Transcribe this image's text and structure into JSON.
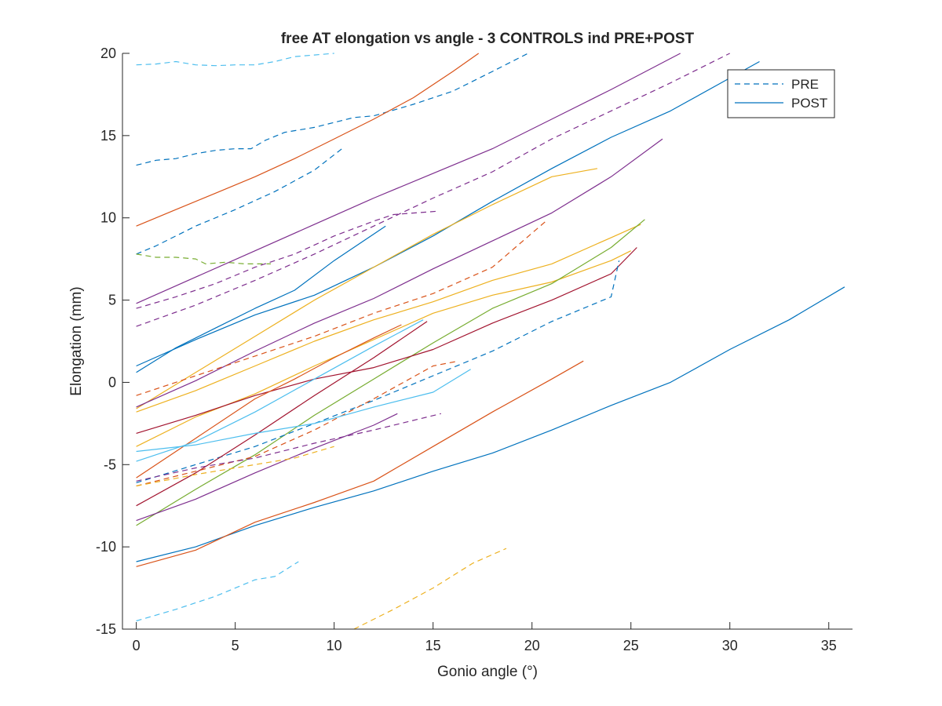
{
  "chart_data": {
    "type": "line",
    "title": "free AT elongation vs angle - 3 CONTROLS ind PRE+POST",
    "xlabel": "Gonio angle (°)",
    "ylabel": "Elongation (mm)",
    "xlim": [
      -0.7,
      36.2
    ],
    "ylim": [
      -15,
      20
    ],
    "xticks": [
      0,
      5,
      10,
      15,
      20,
      25,
      30,
      35
    ],
    "yticks": [
      -15,
      -10,
      -5,
      0,
      5,
      10,
      15,
      20
    ],
    "grid": false,
    "legend": {
      "position": "top-right",
      "entries": [
        {
          "label": "PRE",
          "style": "dashed",
          "color": "#0072bd"
        },
        {
          "label": "POST",
          "style": "solid",
          "color": "#0072bd"
        }
      ]
    },
    "series": [
      {
        "color": "#4dbeee",
        "style": "dashed",
        "points": [
          [
            0,
            19.3
          ],
          [
            1,
            19.35
          ],
          [
            2,
            19.5
          ],
          [
            3,
            19.3
          ],
          [
            4,
            19.25
          ],
          [
            5,
            19.3
          ],
          [
            6,
            19.3
          ],
          [
            7,
            19.5
          ],
          [
            8,
            19.8
          ],
          [
            9,
            19.9
          ],
          [
            10,
            20
          ]
        ]
      },
      {
        "color": "#0072bd",
        "style": "dashed",
        "points": [
          [
            0,
            13.2
          ],
          [
            1,
            13.5
          ],
          [
            2,
            13.6
          ],
          [
            3,
            13.9
          ],
          [
            4,
            14.1
          ],
          [
            5,
            14.2
          ],
          [
            5.8,
            14.2
          ],
          [
            6.5,
            14.7
          ],
          [
            7.5,
            15.2
          ],
          [
            9,
            15.5
          ],
          [
            10,
            15.8
          ],
          [
            11,
            16.1
          ],
          [
            12,
            16.2
          ],
          [
            14,
            16.9
          ],
          [
            16,
            17.7
          ],
          [
            18,
            18.9
          ],
          [
            19.8,
            20
          ]
        ]
      },
      {
        "color": "#d95319",
        "style": "solid",
        "points": [
          [
            0,
            9.5
          ],
          [
            2,
            10.5
          ],
          [
            4,
            11.5
          ],
          [
            6,
            12.5
          ],
          [
            8,
            13.6
          ],
          [
            10,
            14.8
          ],
          [
            12,
            16
          ],
          [
            14,
            17.3
          ],
          [
            16,
            18.9
          ],
          [
            17.3,
            20
          ]
        ]
      },
      {
        "color": "#0072bd",
        "style": "dashed",
        "points": [
          [
            0,
            7.8
          ],
          [
            1,
            8.3
          ],
          [
            2,
            8.9
          ],
          [
            3,
            9.5
          ],
          [
            5,
            10.5
          ],
          [
            7,
            11.6
          ],
          [
            9,
            12.9
          ],
          [
            10.5,
            14.3
          ]
        ]
      },
      {
        "color": "#77ac30",
        "style": "dashed",
        "points": [
          [
            0,
            7.8
          ],
          [
            1,
            7.6
          ],
          [
            2,
            7.6
          ],
          [
            3,
            7.5
          ],
          [
            3.5,
            7.2
          ],
          [
            4.5,
            7.3
          ],
          [
            5.5,
            7.2
          ],
          [
            6.8,
            7.2
          ]
        ]
      },
      {
        "color": "#7e2f8e",
        "style": "solid",
        "points": [
          [
            0,
            4.8
          ],
          [
            3,
            6.4
          ],
          [
            6,
            8
          ],
          [
            9,
            9.6
          ],
          [
            12,
            11.2
          ],
          [
            15,
            12.7
          ],
          [
            18,
            14.2
          ],
          [
            21,
            16
          ],
          [
            24,
            17.8
          ],
          [
            27.5,
            20
          ]
        ]
      },
      {
        "color": "#7e2f8e",
        "style": "dashed",
        "points": [
          [
            0,
            4.5
          ],
          [
            2,
            5.2
          ],
          [
            4,
            6
          ],
          [
            6,
            7
          ],
          [
            8,
            7.8
          ],
          [
            10,
            8.9
          ],
          [
            12,
            9.8
          ],
          [
            13,
            10.2
          ],
          [
            15.2,
            10.4
          ]
        ]
      },
      {
        "color": "#7e2f8e",
        "style": "dashed",
        "points": [
          [
            0,
            3.4
          ],
          [
            3,
            4.7
          ],
          [
            6,
            6.2
          ],
          [
            9,
            7.8
          ],
          [
            12,
            9.5
          ],
          [
            15,
            11.2
          ],
          [
            18,
            12.8
          ],
          [
            21,
            14.8
          ],
          [
            24,
            16.5
          ],
          [
            27,
            18.2
          ],
          [
            30,
            20
          ]
        ]
      },
      {
        "color": "#0072bd",
        "style": "solid",
        "points": [
          [
            0,
            1
          ],
          [
            3,
            2.6
          ],
          [
            6,
            4.1
          ],
          [
            9,
            5.3
          ],
          [
            12,
            7
          ],
          [
            15,
            8.9
          ],
          [
            18,
            11
          ],
          [
            21,
            13
          ],
          [
            24,
            14.9
          ],
          [
            27,
            16.5
          ],
          [
            30,
            18.5
          ],
          [
            31.5,
            19.5
          ]
        ]
      },
      {
        "color": "#0072bd",
        "style": "solid",
        "points": [
          [
            0,
            0.6
          ],
          [
            2,
            2.1
          ],
          [
            4,
            3.3
          ],
          [
            6,
            4.5
          ],
          [
            8,
            5.6
          ],
          [
            10,
            7.4
          ],
          [
            12.6,
            9.5
          ]
        ]
      },
      {
        "color": "#edb120",
        "style": "solid",
        "points": [
          [
            0,
            -1.6
          ],
          [
            3,
            0.6
          ],
          [
            6,
            2.8
          ],
          [
            9,
            5
          ],
          [
            12,
            7
          ],
          [
            15,
            9
          ],
          [
            18,
            10.8
          ],
          [
            21,
            12.5
          ],
          [
            23.3,
            13
          ]
        ]
      },
      {
        "color": "#7e2f8e",
        "style": "solid",
        "points": [
          [
            0,
            -1.5
          ],
          [
            3,
            0.1
          ],
          [
            6,
            1.9
          ],
          [
            9,
            3.6
          ],
          [
            12,
            5.1
          ],
          [
            15,
            6.9
          ],
          [
            18,
            8.6
          ],
          [
            21,
            10.3
          ],
          [
            24,
            12.5
          ],
          [
            26.6,
            14.8
          ]
        ]
      },
      {
        "color": "#edb120",
        "style": "solid",
        "points": [
          [
            0,
            -1.8
          ],
          [
            3,
            -0.5
          ],
          [
            6,
            1
          ],
          [
            9,
            2.5
          ],
          [
            12,
            3.8
          ],
          [
            15,
            4.9
          ],
          [
            18,
            6.2
          ],
          [
            21,
            7.2
          ],
          [
            24,
            8.8
          ],
          [
            25.5,
            9.6
          ]
        ]
      },
      {
        "color": "#d95319",
        "style": "dashed",
        "points": [
          [
            0,
            -0.8
          ],
          [
            3,
            0.4
          ],
          [
            6,
            1.6
          ],
          [
            9,
            2.8
          ],
          [
            12,
            4.2
          ],
          [
            15,
            5.4
          ],
          [
            18,
            7
          ],
          [
            20.8,
            9.9
          ]
        ]
      },
      {
        "color": "#edb120",
        "style": "solid",
        "points": [
          [
            0,
            -3.9
          ],
          [
            3,
            -2.1
          ],
          [
            6,
            -0.7
          ],
          [
            9,
            1
          ],
          [
            12,
            2.6
          ],
          [
            15,
            4.2
          ],
          [
            18,
            5.3
          ],
          [
            21,
            6.1
          ],
          [
            24,
            7.4
          ],
          [
            25,
            8
          ]
        ]
      },
      {
        "color": "#77ac30",
        "style": "solid",
        "points": [
          [
            0,
            -8.7
          ],
          [
            3,
            -6.5
          ],
          [
            6,
            -4.4
          ],
          [
            9,
            -2
          ],
          [
            12,
            0.2
          ],
          [
            15,
            2.4
          ],
          [
            18,
            4.5
          ],
          [
            21,
            6
          ],
          [
            24,
            8.2
          ],
          [
            25.7,
            9.9
          ]
        ]
      },
      {
        "color": "#a2142f",
        "style": "solid",
        "points": [
          [
            0,
            -3.1
          ],
          [
            3,
            -2
          ],
          [
            6,
            -0.8
          ],
          [
            9,
            0.2
          ],
          [
            12,
            0.9
          ],
          [
            15,
            2
          ],
          [
            18,
            3.6
          ],
          [
            21,
            5
          ],
          [
            24,
            6.6
          ],
          [
            25.3,
            8.2
          ]
        ]
      },
      {
        "color": "#0072bd",
        "style": "dashed",
        "points": [
          [
            0,
            -6.1
          ],
          [
            3,
            -5
          ],
          [
            6,
            -3.9
          ],
          [
            9,
            -2.5
          ],
          [
            12,
            -1.1
          ],
          [
            15,
            0.4
          ],
          [
            18,
            1.9
          ],
          [
            21,
            3.7
          ],
          [
            24,
            5.2
          ],
          [
            24.4,
            7.4
          ]
        ]
      },
      {
        "color": "#d95319",
        "style": "solid",
        "points": [
          [
            0,
            -5.8
          ],
          [
            3,
            -3.4
          ],
          [
            6,
            -1
          ],
          [
            8,
            0.2
          ],
          [
            10,
            1.5
          ],
          [
            12,
            2.7
          ],
          [
            13.4,
            3.5
          ]
        ]
      },
      {
        "color": "#a2142f",
        "style": "solid",
        "points": [
          [
            0,
            -7.5
          ],
          [
            3,
            -5.5
          ],
          [
            6,
            -3.2
          ],
          [
            9,
            -0.8
          ],
          [
            12,
            1.5
          ],
          [
            14.7,
            3.7
          ]
        ]
      },
      {
        "color": "#4dbeee",
        "style": "solid",
        "points": [
          [
            0,
            -4.8
          ],
          [
            3,
            -3.6
          ],
          [
            6,
            -1.8
          ],
          [
            9,
            0.2
          ],
          [
            12,
            2.2
          ],
          [
            14.5,
            3.8
          ]
        ]
      },
      {
        "color": "#d95319",
        "style": "dashed",
        "points": [
          [
            0,
            -6.3
          ],
          [
            3,
            -5.4
          ],
          [
            6,
            -4.5
          ],
          [
            9,
            -2.9
          ],
          [
            12,
            -1
          ],
          [
            15,
            1
          ],
          [
            16.3,
            1.3
          ]
        ]
      },
      {
        "color": "#4dbeee",
        "style": "solid",
        "points": [
          [
            0,
            -4.2
          ],
          [
            3,
            -3.8
          ],
          [
            6,
            -3.1
          ],
          [
            9,
            -2.5
          ],
          [
            12,
            -1.5
          ],
          [
            15,
            -0.6
          ],
          [
            16.9,
            0.8
          ]
        ]
      },
      {
        "color": "#7e2f8e",
        "style": "solid",
        "points": [
          [
            0,
            -8.4
          ],
          [
            3,
            -7.1
          ],
          [
            6,
            -5.5
          ],
          [
            9,
            -4
          ],
          [
            12,
            -2.6
          ],
          [
            13.2,
            -1.9
          ]
        ]
      },
      {
        "color": "#7e2f8e",
        "style": "dashed",
        "points": [
          [
            0,
            -6
          ],
          [
            3,
            -5.2
          ],
          [
            6,
            -4.6
          ],
          [
            9,
            -3.7
          ],
          [
            12,
            -2.9
          ],
          [
            15.4,
            -1.9
          ]
        ]
      },
      {
        "color": "#edb120",
        "style": "dashed",
        "points": [
          [
            0,
            -6.3
          ],
          [
            3,
            -5.6
          ],
          [
            6,
            -5
          ],
          [
            8,
            -4.6
          ],
          [
            10,
            -3.9
          ]
        ]
      },
      {
        "color": "#0072bd",
        "style": "solid",
        "points": [
          [
            0,
            -10.9
          ],
          [
            3,
            -10
          ],
          [
            6,
            -8.7
          ],
          [
            9,
            -7.6
          ],
          [
            12,
            -6.6
          ],
          [
            15,
            -5.4
          ],
          [
            18,
            -4.3
          ],
          [
            21,
            -2.9
          ],
          [
            24,
            -1.4
          ],
          [
            27,
            0
          ],
          [
            30,
            2
          ],
          [
            33,
            3.8
          ],
          [
            35.8,
            5.8
          ]
        ]
      },
      {
        "color": "#d95319",
        "style": "solid",
        "points": [
          [
            0,
            -11.2
          ],
          [
            3,
            -10.2
          ],
          [
            6,
            -8.5
          ],
          [
            9,
            -7.3
          ],
          [
            12,
            -6
          ],
          [
            15,
            -3.9
          ],
          [
            18,
            -1.8
          ],
          [
            21,
            0.2
          ],
          [
            22.6,
            1.3
          ]
        ]
      },
      {
        "color": "#4dbeee",
        "style": "dashed",
        "points": [
          [
            0,
            -14.5
          ],
          [
            2,
            -13.8
          ],
          [
            4,
            -13
          ],
          [
            6,
            -12
          ],
          [
            7,
            -11.8
          ],
          [
            8.2,
            -10.9
          ]
        ]
      },
      {
        "color": "#edb120",
        "style": "dashed",
        "points": [
          [
            11,
            -15
          ],
          [
            13,
            -13.8
          ],
          [
            15,
            -12.5
          ],
          [
            17,
            -11
          ],
          [
            18.7,
            -10.1
          ]
        ]
      }
    ]
  }
}
